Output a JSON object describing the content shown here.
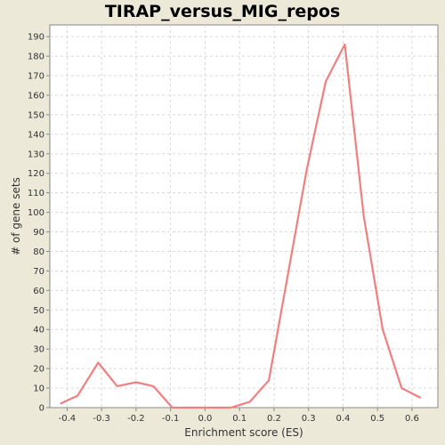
{
  "chart_data": {
    "type": "line",
    "title": "TIRAP_versus_MIG_repos",
    "xlabel": "Enrichment score (ES)",
    "ylabel": "# of gene sets",
    "xlim": [
      -0.45,
      0.675
    ],
    "ylim": [
      0,
      196
    ],
    "grid": true,
    "x_ticks": [
      -0.4,
      -0.3,
      -0.2,
      -0.1,
      0.0,
      0.1,
      0.2,
      0.3,
      0.4,
      0.5,
      0.6
    ],
    "x_tick_labels": [
      "-0.4",
      "-0.3",
      "-0.2",
      "-0.1",
      "0.0",
      "0.1",
      "0.2",
      "0.3",
      "0.4",
      "0.5",
      "0.6"
    ],
    "y_ticks": [
      0,
      10,
      20,
      30,
      40,
      50,
      60,
      70,
      80,
      90,
      100,
      110,
      120,
      130,
      140,
      150,
      160,
      170,
      180,
      190
    ],
    "y_tick_labels": [
      "0",
      "10",
      "20",
      "30",
      "40",
      "50",
      "60",
      "70",
      "80",
      "90",
      "100",
      "110",
      "120",
      "130",
      "140",
      "150",
      "160",
      "170",
      "180",
      "190"
    ],
    "series": [
      {
        "color": "#F08080",
        "x": [
          -0.42,
          -0.37,
          -0.31,
          -0.255,
          -0.2,
          -0.15,
          -0.095,
          -0.045,
          0.01,
          0.075,
          0.13,
          0.185,
          0.24,
          0.295,
          0.35,
          0.405,
          0.46,
          0.515,
          0.57,
          0.625
        ],
        "y": [
          2,
          6,
          23,
          11,
          13,
          11,
          0,
          0,
          0,
          0,
          3,
          14,
          68,
          122,
          167,
          186,
          98,
          40,
          10,
          5
        ]
      }
    ]
  }
}
